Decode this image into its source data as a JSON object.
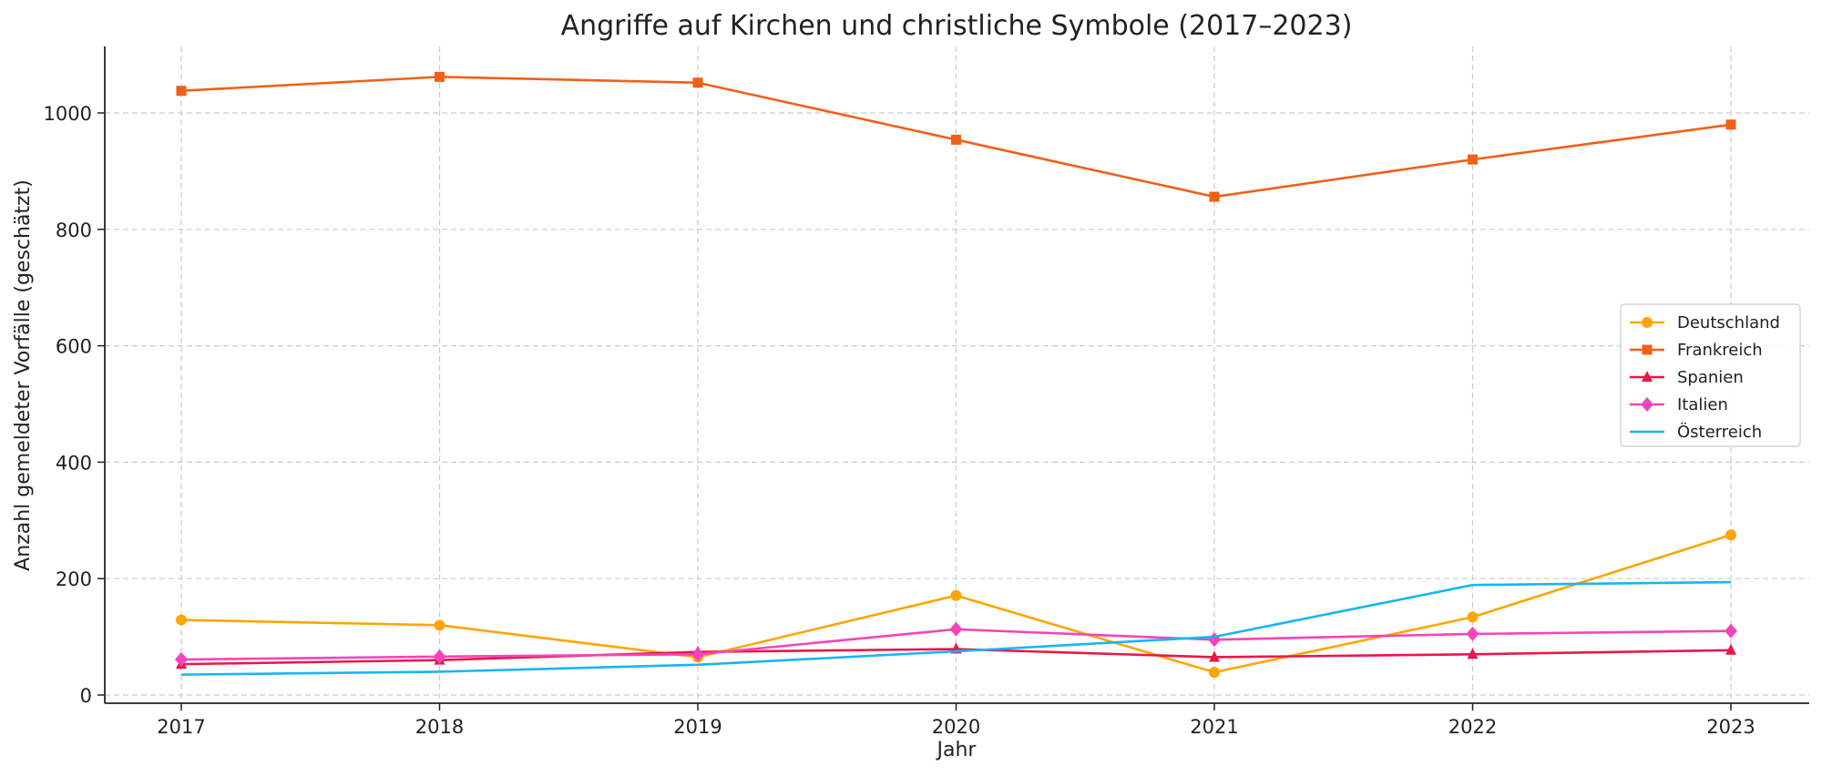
{
  "chart_data": {
    "type": "line",
    "title": "Angriffe auf Kirchen und christliche Symbole (2017–2023)",
    "xlabel": "Jahr",
    "ylabel": "Anzahl gemeldeter Vorfälle (geschätzt)",
    "x": [
      2017,
      2018,
      2019,
      2020,
      2021,
      2022,
      2023
    ],
    "x_tick_labels": [
      "2017",
      "2018",
      "2019",
      "2020",
      "2021",
      "2022",
      "2023"
    ],
    "y_ticks": [
      0,
      200,
      400,
      600,
      800,
      1000
    ],
    "y_tick_labels": [
      "0",
      "200",
      "400",
      "600",
      "800",
      "1000"
    ],
    "ylim": [
      -15,
      1110
    ],
    "xlim": [
      2016.7,
      2023.3
    ],
    "grid": true,
    "legend_position": "center-right",
    "series": [
      {
        "name": "Deutschland",
        "color": "#FFA500",
        "marker": "circle",
        "values": [
          129,
          120,
          65,
          171,
          39,
          134,
          275
        ]
      },
      {
        "name": "Frankreich",
        "color": "#F25F17",
        "marker": "square",
        "values": [
          1038,
          1062,
          1052,
          954,
          856,
          920,
          980
        ]
      },
      {
        "name": "Spanien",
        "color": "#E8174A",
        "marker": "triangle",
        "values": [
          53,
          60,
          74,
          79,
          65,
          70,
          77
        ]
      },
      {
        "name": "Italien",
        "color": "#F545B8",
        "marker": "diamond",
        "values": [
          61,
          66,
          70,
          113,
          95,
          105,
          110
        ]
      },
      {
        "name": "Österreich",
        "color": "#17B5F5",
        "marker": "none",
        "values": [
          35,
          40,
          52,
          75,
          100,
          189,
          194
        ]
      }
    ]
  }
}
